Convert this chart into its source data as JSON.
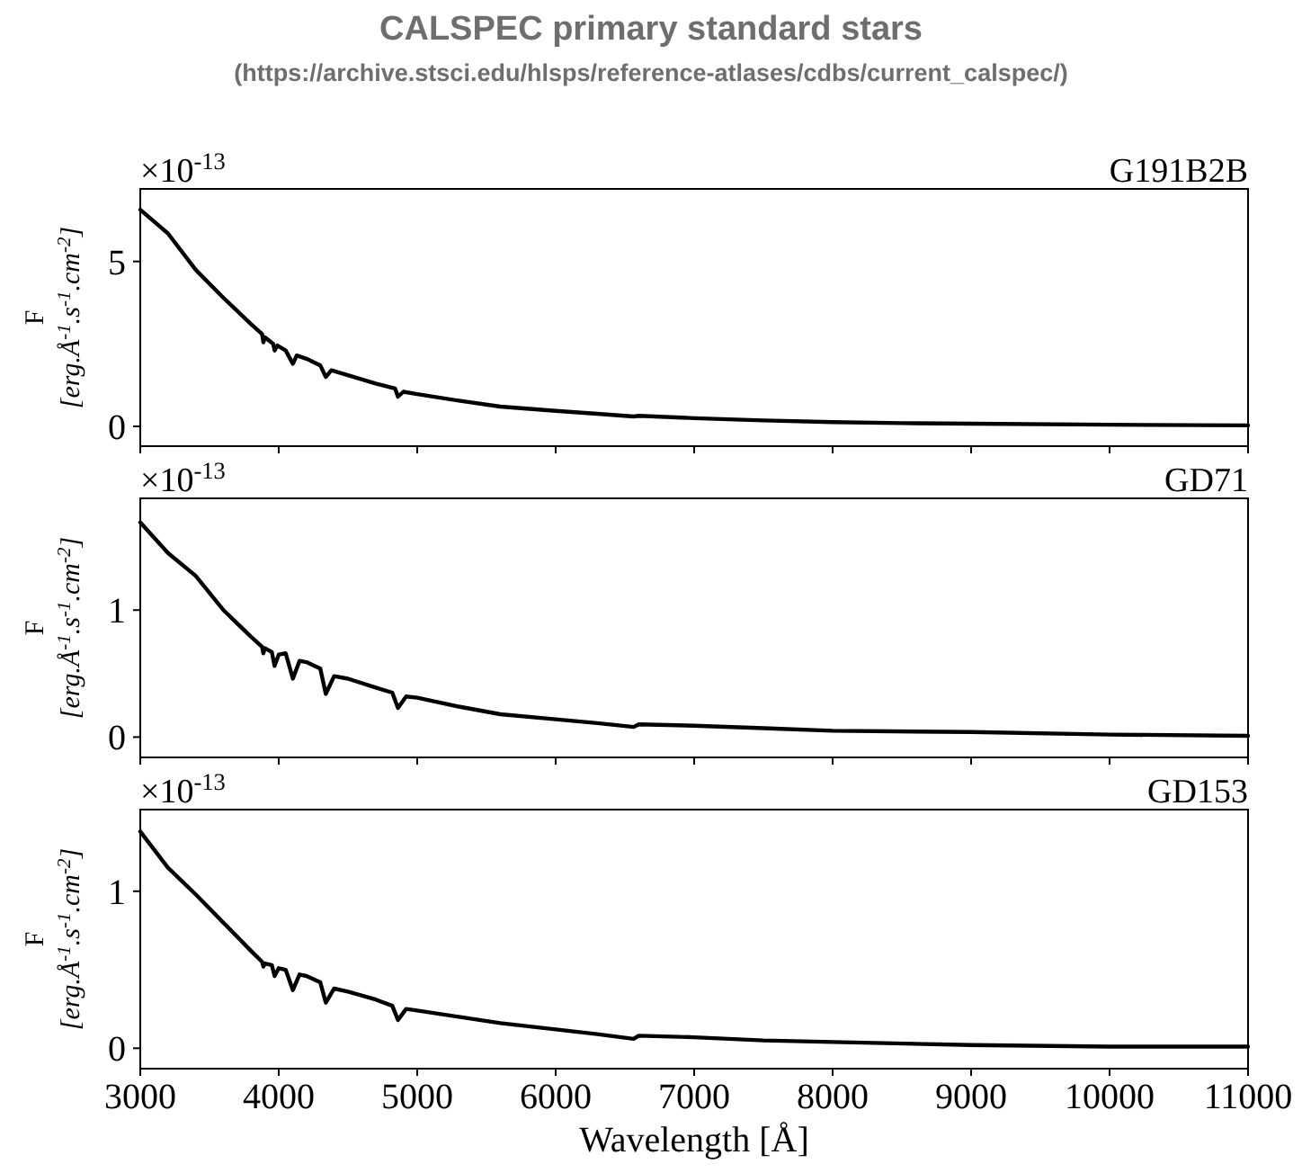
{
  "chart_data": [
    {
      "type": "line",
      "title": "CALSPEC primary standard stars",
      "subtitle": "(https://archive.stsci.edu/hlsps/reference-atlases/cdbs/current_calspec/)",
      "ylabel": "F [erg.Å$^{-1}$.s$^{-1}$.cm$^{-2}$]",
      "annotations": [
        "×10$^{-13}$"
      ],
      "xlim": [
        3000,
        11000
      ],
      "xticks": [
        3000,
        4000,
        5000,
        6000,
        7000,
        8000,
        9000,
        10000,
        11000
      ],
      "ylim": [
        -0.6,
        7.2
      ],
      "yticks": [
        0,
        5
      ],
      "tick_labels": "y",
      "grid": false,
      "legend": false,
      "marker": "none",
      "line_style": "solid",
      "x": [
        3000,
        3200,
        3400,
        3600,
        3800,
        3880,
        3889,
        3900,
        3960,
        3970,
        3990,
        4050,
        4102,
        4130,
        4200,
        4300,
        4340,
        4380,
        4500,
        4700,
        4840,
        4861,
        4900,
        5000,
        5300,
        5600,
        6000,
        6300,
        6563,
        6600,
        7000,
        7500,
        8000,
        8500,
        9000,
        10000,
        11000
      ],
      "series": [
        {
          "name": "G191B2B",
          "color": "#000000",
          "values": [
            6.57,
            5.85,
            4.75,
            3.9,
            3.1,
            2.8,
            2.55,
            2.7,
            2.5,
            2.3,
            2.45,
            2.3,
            1.9,
            2.15,
            2.05,
            1.85,
            1.5,
            1.7,
            1.55,
            1.3,
            1.15,
            0.9,
            1.05,
            0.98,
            0.78,
            0.6,
            0.47,
            0.38,
            0.3,
            0.32,
            0.25,
            0.18,
            0.13,
            0.1,
            0.08,
            0.05,
            0.03
          ]
        }
      ]
    },
    {
      "type": "line",
      "ylabel": "F [erg.Å$^{-1}$.s$^{-1}$.cm$^{-2}$]",
      "annotations": [
        "×10$^{-13}$"
      ],
      "xlim": [
        3000,
        11000
      ],
      "xticks": [
        3000,
        4000,
        5000,
        6000,
        7000,
        8000,
        9000,
        10000,
        11000
      ],
      "ylim": [
        -0.16,
        1.88
      ],
      "yticks": [
        0,
        1
      ],
      "tick_labels": "y",
      "grid": false,
      "legend": false,
      "marker": "none",
      "line_style": "solid",
      "x": [
        3000,
        3200,
        3400,
        3600,
        3800,
        3880,
        3889,
        3900,
        3950,
        3970,
        4000,
        4050,
        4102,
        4150,
        4200,
        4300,
        4340,
        4400,
        4500,
        4700,
        4820,
        4861,
        4920,
        5000,
        5300,
        5600,
        6000,
        6300,
        6563,
        6600,
        7000,
        7500,
        8000,
        9000,
        10000,
        11000
      ],
      "series": [
        {
          "name": "GD71",
          "color": "#000000",
          "values": [
            1.69,
            1.45,
            1.27,
            1.0,
            0.79,
            0.71,
            0.66,
            0.7,
            0.67,
            0.56,
            0.65,
            0.66,
            0.46,
            0.6,
            0.59,
            0.54,
            0.34,
            0.48,
            0.46,
            0.39,
            0.35,
            0.23,
            0.32,
            0.31,
            0.24,
            0.18,
            0.14,
            0.11,
            0.08,
            0.1,
            0.09,
            0.07,
            0.05,
            0.04,
            0.02,
            0.01
          ]
        }
      ]
    },
    {
      "type": "line",
      "xlabel": "Wavelength [Å]",
      "ylabel": "F [erg.Å$^{-1}$.s$^{-1}$.cm$^{-2}$]",
      "annotations": [
        "×10$^{-13}$"
      ],
      "xlim": [
        3000,
        11000
      ],
      "xticks": [
        3000,
        4000,
        5000,
        6000,
        7000,
        8000,
        9000,
        10000,
        11000
      ],
      "ylim": [
        -0.13,
        1.52
      ],
      "yticks": [
        0,
        1
      ],
      "grid": false,
      "legend": false,
      "marker": "none",
      "line_style": "solid",
      "x": [
        3000,
        3200,
        3400,
        3600,
        3800,
        3880,
        3889,
        3900,
        3950,
        3970,
        4000,
        4050,
        4102,
        4150,
        4200,
        4300,
        4340,
        4400,
        4500,
        4700,
        4820,
        4861,
        4920,
        5000,
        5300,
        5600,
        6000,
        6300,
        6563,
        6600,
        7000,
        7500,
        8000,
        9000,
        10000,
        11000
      ],
      "series": [
        {
          "name": "GD153",
          "color": "#000000",
          "values": [
            1.38,
            1.15,
            0.98,
            0.8,
            0.62,
            0.55,
            0.52,
            0.54,
            0.53,
            0.46,
            0.51,
            0.5,
            0.37,
            0.47,
            0.46,
            0.42,
            0.29,
            0.38,
            0.36,
            0.31,
            0.27,
            0.18,
            0.25,
            0.24,
            0.2,
            0.16,
            0.12,
            0.09,
            0.06,
            0.08,
            0.07,
            0.05,
            0.04,
            0.02,
            0.01,
            0.01
          ]
        }
      ]
    }
  ]
}
